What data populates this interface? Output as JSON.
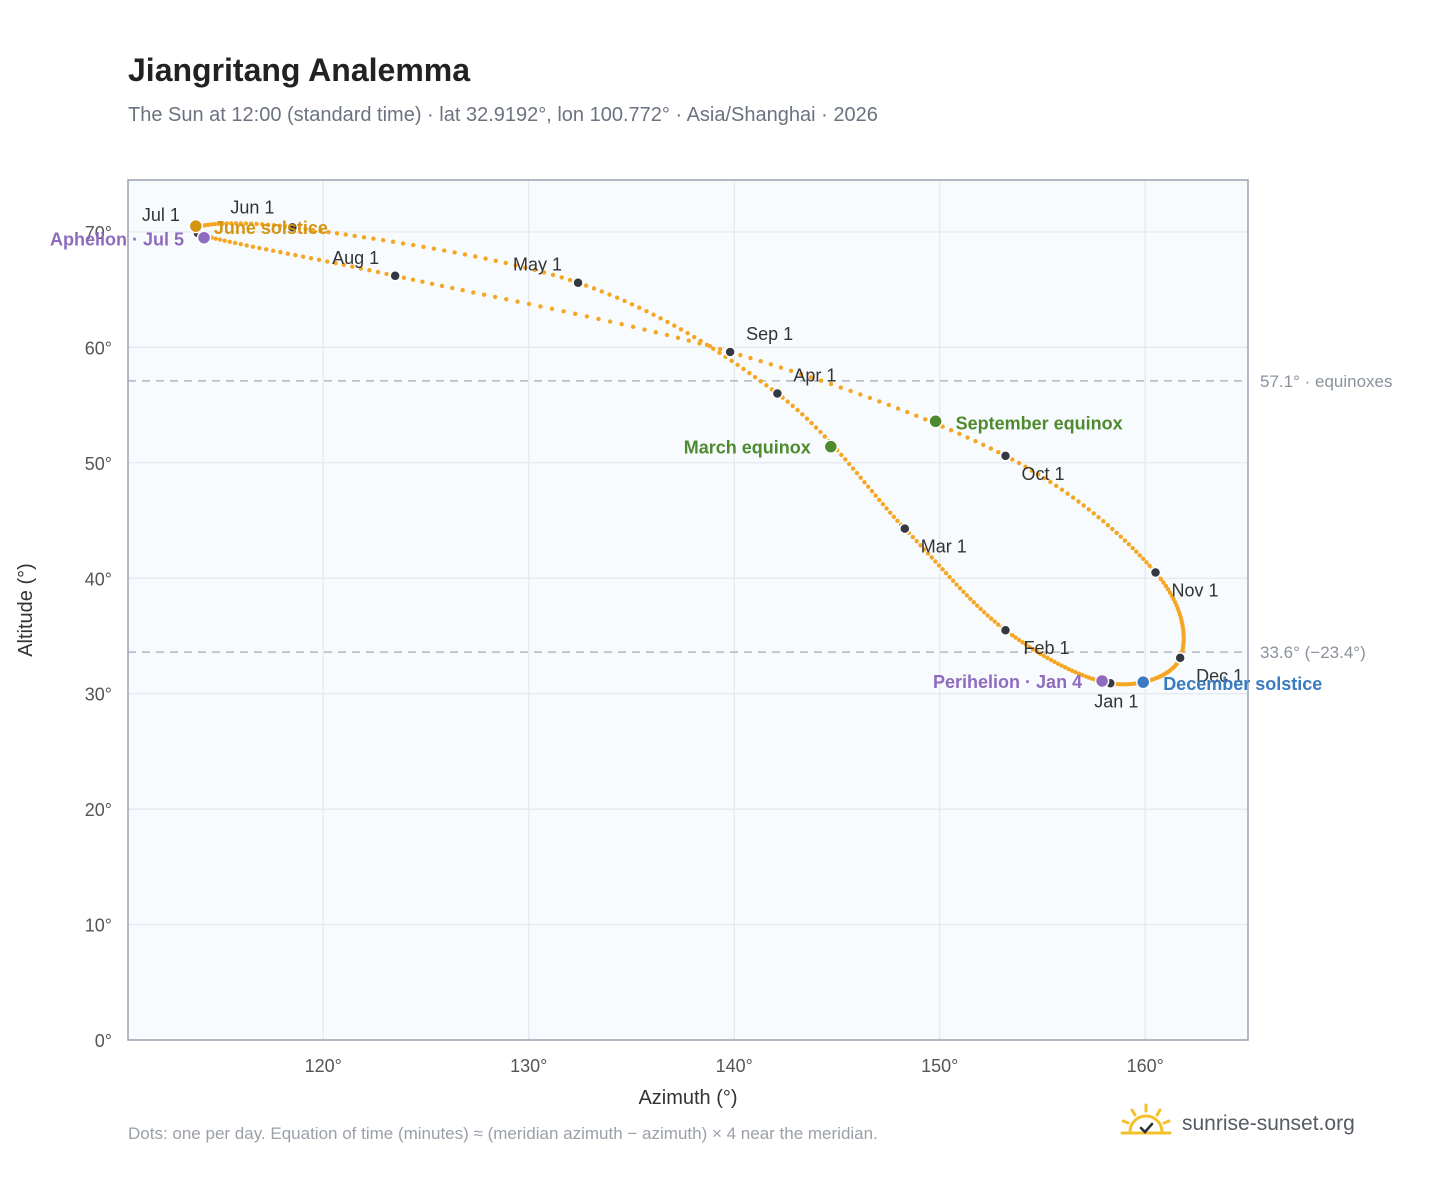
{
  "header": {
    "title": "Jiangritang Analemma",
    "subtitle": "The Sun at 12:00 (standard time) · lat 32.9192°, lon 100.772° · Asia/Shanghai · 2026"
  },
  "footer": {
    "note": "Dots: one per day. Equation of time (minutes) ≈ (meridian azimuth − azimuth) × 4 near the meridian.",
    "brand": "sunrise-sunset.org"
  },
  "colors": {
    "curve": "#f5a623",
    "month_dot": "#333842",
    "solstice_june": "#d4940f",
    "solstice_december": "#3a7bbf",
    "equinox": "#4e8a2e",
    "apsis": "#8e6bbf",
    "reference_line": "#b0b8c2",
    "plot_background": "#f8fbfd"
  },
  "chart_data": {
    "type": "scatter",
    "xlabel": "Azimuth (°)",
    "ylabel": "Altitude (°)",
    "xlim": [
      110.5,
      165
    ],
    "ylim": [
      0,
      74.5
    ],
    "x_ticks": [
      120,
      130,
      140,
      150,
      160
    ],
    "x_tick_labels": [
      "120°",
      "130°",
      "140°",
      "150°",
      "160°"
    ],
    "y_ticks": [
      0,
      10,
      20,
      30,
      40,
      50,
      60,
      70
    ],
    "y_tick_labels": [
      "0°",
      "10°",
      "20°",
      "30°",
      "40°",
      "50°",
      "60°",
      "70°"
    ],
    "grid": true,
    "reference_lines": [
      {
        "y": 57.1,
        "label": "57.1° · equinoxes"
      },
      {
        "y": 33.6,
        "label": "33.6° (−23.4°)"
      }
    ],
    "month_markers": [
      {
        "label": "Jan 1",
        "x": 158.3,
        "y": 30.9
      },
      {
        "label": "Feb 1",
        "x": 153.2,
        "y": 35.5
      },
      {
        "label": "Mar 1",
        "x": 148.3,
        "y": 44.3
      },
      {
        "label": "Apr 1",
        "x": 142.1,
        "y": 56.0
      },
      {
        "label": "May 1",
        "x": 132.4,
        "y": 65.6
      },
      {
        "label": "Jun 1",
        "x": 118.5,
        "y": 70.4
      },
      {
        "label": "Jul 1",
        "x": 113.9,
        "y": 69.9
      },
      {
        "label": "Aug 1",
        "x": 123.5,
        "y": 66.2
      },
      {
        "label": "Sep 1",
        "x": 139.8,
        "y": 59.6
      },
      {
        "label": "Oct 1",
        "x": 153.2,
        "y": 50.6
      },
      {
        "label": "Nov 1",
        "x": 160.5,
        "y": 40.5
      },
      {
        "label": "Dec 1",
        "x": 161.7,
        "y": 33.1
      }
    ],
    "events": [
      {
        "label": "June solstice",
        "x": 113.8,
        "y": 70.5,
        "kind": "solstice_june"
      },
      {
        "label": "December solstice",
        "x": 159.9,
        "y": 31.0,
        "kind": "solstice_december"
      },
      {
        "label": "March equinox",
        "x": 144.7,
        "y": 51.4,
        "kind": "equinox"
      },
      {
        "label": "September equinox",
        "x": 149.8,
        "y": 53.6,
        "kind": "equinox"
      },
      {
        "label": "Aphelion · Jul 5",
        "x": 114.2,
        "y": 69.5,
        "kind": "apsis"
      },
      {
        "label": "Perihelion · Jan 4",
        "x": 157.9,
        "y": 31.1,
        "kind": "apsis"
      }
    ]
  }
}
